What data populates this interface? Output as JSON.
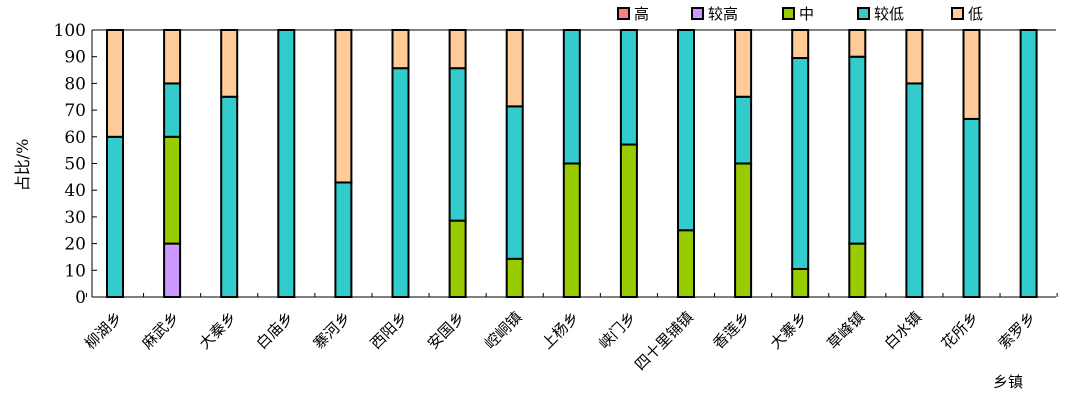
{
  "chart_data": {
    "type": "bar",
    "stacked": true,
    "xlabel": "乡镇",
    "ylabel": "占比/%",
    "ylim": [
      0,
      100
    ],
    "yticks": [
      0,
      10,
      20,
      30,
      40,
      50,
      60,
      70,
      80,
      90,
      100
    ],
    "legend_position": "top-right",
    "grid": false,
    "categories": [
      "柳湖乡",
      "麻武乡",
      "大秦乡",
      "白庙乡",
      "寨河乡",
      "西阳乡",
      "安国乡",
      "崆峒镇",
      "上杨乡",
      "峡门乡",
      "四十里铺镇",
      "香莲乡",
      "大寨乡",
      "草峰镇",
      "白水镇",
      "花所乡",
      "索罗乡"
    ],
    "series": [
      {
        "name": "高",
        "color": "#ff7f7f",
        "values": [
          0,
          0,
          0,
          0,
          0,
          0,
          0,
          0,
          0,
          0,
          0,
          0,
          0,
          0,
          0,
          0,
          0
        ]
      },
      {
        "name": "较高",
        "color": "#cc99ff",
        "values": [
          0,
          20,
          0,
          0,
          0,
          0,
          0,
          0,
          0,
          0,
          0,
          0,
          0,
          0,
          0,
          0,
          0
        ]
      },
      {
        "name": "中",
        "color": "#99cc00",
        "values": [
          0,
          40,
          0,
          0,
          0,
          0,
          28.6,
          14.3,
          50,
          57.1,
          25,
          50,
          10.5,
          20,
          0,
          0,
          0
        ]
      },
      {
        "name": "较低",
        "color": "#33cccc",
        "values": [
          60,
          20,
          75,
          100,
          42.9,
          85.7,
          57.1,
          57.1,
          50,
          42.9,
          75,
          25,
          79,
          70,
          80,
          66.7,
          100
        ]
      },
      {
        "name": "低",
        "color": "#ffcc99",
        "values": [
          40,
          20,
          25,
          0,
          57.1,
          14.3,
          14.3,
          28.6,
          0,
          0,
          0,
          25,
          10.5,
          10,
          20,
          33.3,
          0
        ]
      }
    ]
  }
}
